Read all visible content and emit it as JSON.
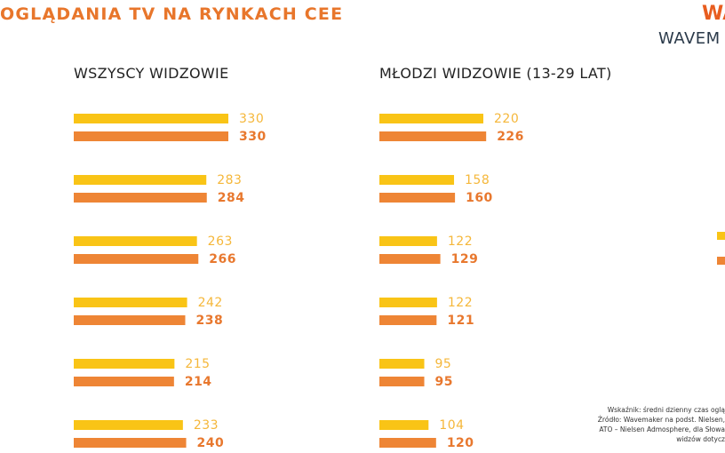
{
  "header": {
    "title": "OGLĄDANIA TV NA RYNKACH CEE",
    "logo_top": "WA",
    "logo_bottom": "WAVEM"
  },
  "colors": {
    "series_a": "#f9c416",
    "series_b": "#ee8535",
    "label_a": "#f5b73a",
    "label_b": "#e8782e",
    "title": "#e8762b"
  },
  "chart_data": [
    {
      "type": "bar",
      "orientation": "horizontal",
      "title": "WSZYSCY WIDZOWIE",
      "groups": 6,
      "series": [
        {
          "values": [
            330,
            283,
            263,
            242,
            215,
            233
          ]
        },
        {
          "values": [
            330,
            284,
            266,
            238,
            214,
            240
          ]
        }
      ]
    },
    {
      "type": "bar",
      "orientation": "horizontal",
      "title": "MŁODZI WIDZOWIE (13-29 LAT)",
      "groups": 6,
      "series": [
        {
          "values": [
            220,
            158,
            122,
            122,
            95,
            104
          ]
        },
        {
          "values": [
            226,
            160,
            129,
            121,
            95,
            120
          ]
        }
      ]
    }
  ],
  "footnote": {
    "lines": [
      "Wskaźnik: średni dzienny czas oglą",
      "Źródło: Wavemaker na podst. Nielsen,",
      "ATO – Nielsen Admosphere, dla Słowa",
      "widzów dotycz"
    ]
  }
}
